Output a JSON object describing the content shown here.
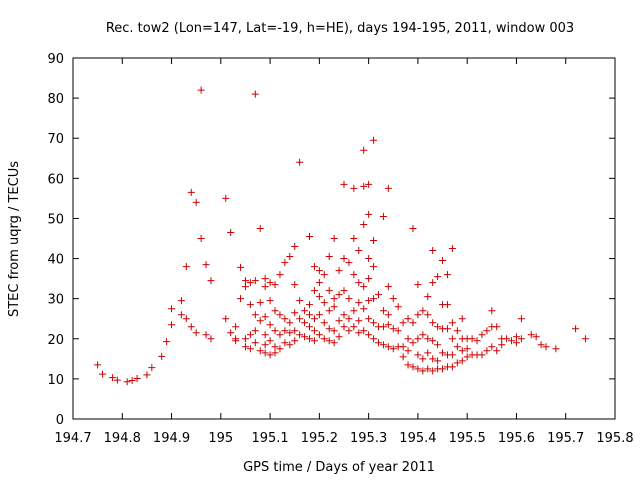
{
  "chart_data": {
    "type": "scatter",
    "title": "Rec. tow2 (Lon=147, Lat=-19, h=HE), days 194-195, 2011, window 003",
    "xlabel": "GPS time / Days of year 2011",
    "ylabel": "STEC from uqrg / TECUs",
    "xlim": [
      194.7,
      195.8
    ],
    "ylim": [
      0,
      90
    ],
    "xticks": [
      194.7,
      194.8,
      194.9,
      195.0,
      195.1,
      195.2,
      195.3,
      195.4,
      195.5,
      195.6,
      195.7,
      195.8
    ],
    "xtick_labels": [
      "194.7",
      "194.8",
      "194.9",
      "195",
      "195.1",
      "195.2",
      "195.3",
      "195.4",
      "195.5",
      "195.6",
      "195.7",
      "195.8"
    ],
    "yticks": [
      0,
      10,
      20,
      30,
      40,
      50,
      60,
      70,
      80,
      90
    ],
    "ytick_labels": [
      "0",
      "10",
      "20",
      "30",
      "40",
      "50",
      "60",
      "70",
      "80",
      "90"
    ],
    "grid": false,
    "marker": "+",
    "color": "#cc0000",
    "points": [
      [
        194.75,
        13.5
      ],
      [
        194.76,
        11.2
      ],
      [
        194.78,
        10.3
      ],
      [
        194.79,
        9.7
      ],
      [
        194.81,
        9.3
      ],
      [
        194.82,
        9.6
      ],
      [
        194.83,
        10.1
      ],
      [
        194.85,
        11.0
      ],
      [
        194.86,
        12.8
      ],
      [
        194.88,
        15.6
      ],
      [
        194.89,
        19.3
      ],
      [
        194.9,
        23.5
      ],
      [
        194.9,
        27.5
      ],
      [
        194.92,
        26.0
      ],
      [
        194.92,
        29.5
      ],
      [
        194.93,
        25.0
      ],
      [
        194.93,
        38.0
      ],
      [
        194.94,
        23.0
      ],
      [
        194.94,
        56.5
      ],
      [
        194.95,
        54.0
      ],
      [
        194.95,
        21.5
      ],
      [
        194.96,
        45.0
      ],
      [
        194.96,
        82.0
      ],
      [
        194.97,
        21.0
      ],
      [
        194.97,
        38.5
      ],
      [
        194.98,
        20.0
      ],
      [
        194.98,
        34.5
      ],
      [
        195.01,
        55.0
      ],
      [
        195.01,
        25.0
      ],
      [
        195.02,
        21.5
      ],
      [
        195.02,
        46.5
      ],
      [
        195.03,
        23.0
      ],
      [
        195.03,
        20.0
      ],
      [
        195.03,
        19.5
      ],
      [
        195.04,
        37.8
      ],
      [
        195.04,
        30.0
      ],
      [
        195.05,
        33.0
      ],
      [
        195.05,
        34.5
      ],
      [
        195.05,
        20.0
      ],
      [
        195.05,
        18.0
      ],
      [
        195.06,
        34.0
      ],
      [
        195.06,
        28.5
      ],
      [
        195.06,
        21.0
      ],
      [
        195.06,
        17.5
      ],
      [
        195.07,
        81.0
      ],
      [
        195.07,
        34.5
      ],
      [
        195.07,
        26.0
      ],
      [
        195.07,
        22.0
      ],
      [
        195.07,
        19.0
      ],
      [
        195.08,
        47.5
      ],
      [
        195.08,
        24.5
      ],
      [
        195.08,
        17.0
      ],
      [
        195.08,
        29.0
      ],
      [
        195.09,
        35.0
      ],
      [
        195.09,
        33.0
      ],
      [
        195.09,
        25.5
      ],
      [
        195.09,
        21.0
      ],
      [
        195.09,
        18.5
      ],
      [
        195.09,
        16.5
      ],
      [
        195.1,
        34.0
      ],
      [
        195.1,
        29.5
      ],
      [
        195.1,
        23.5
      ],
      [
        195.1,
        19.5
      ],
      [
        195.1,
        16.0
      ],
      [
        195.11,
        33.5
      ],
      [
        195.11,
        27.0
      ],
      [
        195.11,
        22.0
      ],
      [
        195.11,
        18.0
      ],
      [
        195.11,
        16.5
      ],
      [
        195.12,
        36.0
      ],
      [
        195.12,
        26.0
      ],
      [
        195.12,
        21.0
      ],
      [
        195.12,
        17.5
      ],
      [
        195.13,
        39.0
      ],
      [
        195.13,
        25.0
      ],
      [
        195.13,
        22.0
      ],
      [
        195.13,
        19.0
      ],
      [
        195.14,
        40.5
      ],
      [
        195.14,
        24.0
      ],
      [
        195.14,
        21.5
      ],
      [
        195.14,
        18.5
      ],
      [
        195.15,
        43.0
      ],
      [
        195.15,
        33.5
      ],
      [
        195.15,
        26.5
      ],
      [
        195.15,
        22.0
      ],
      [
        195.15,
        19.5
      ],
      [
        195.16,
        64.0
      ],
      [
        195.16,
        29.5
      ],
      [
        195.16,
        25.0
      ],
      [
        195.16,
        21.0
      ],
      [
        195.17,
        27.0
      ],
      [
        195.17,
        24.0
      ],
      [
        195.17,
        20.5
      ],
      [
        195.18,
        45.5
      ],
      [
        195.18,
        28.5
      ],
      [
        195.18,
        26.0
      ],
      [
        195.18,
        23.0
      ],
      [
        195.18,
        20.0
      ],
      [
        195.19,
        38.0
      ],
      [
        195.19,
        32.0
      ],
      [
        195.19,
        25.0
      ],
      [
        195.19,
        22.0
      ],
      [
        195.19,
        19.5
      ],
      [
        195.2,
        37.0
      ],
      [
        195.2,
        34.0
      ],
      [
        195.2,
        30.5
      ],
      [
        195.2,
        26.0
      ],
      [
        195.2,
        21.0
      ],
      [
        195.21,
        36.0
      ],
      [
        195.21,
        29.0
      ],
      [
        195.21,
        24.0
      ],
      [
        195.21,
        20.0
      ],
      [
        195.22,
        40.5
      ],
      [
        195.22,
        32.0
      ],
      [
        195.22,
        27.0
      ],
      [
        195.22,
        22.5
      ],
      [
        195.22,
        19.5
      ],
      [
        195.23,
        45.0
      ],
      [
        195.23,
        30.0
      ],
      [
        195.23,
        28.0
      ],
      [
        195.23,
        22.0
      ],
      [
        195.23,
        19.0
      ],
      [
        195.24,
        37.0
      ],
      [
        195.24,
        31.0
      ],
      [
        195.24,
        24.5
      ],
      [
        195.24,
        20.5
      ],
      [
        195.25,
        58.5
      ],
      [
        195.25,
        40.0
      ],
      [
        195.25,
        32.0
      ],
      [
        195.25,
        26.0
      ],
      [
        195.25,
        23.0
      ],
      [
        195.26,
        39.0
      ],
      [
        195.26,
        30.0
      ],
      [
        195.26,
        25.0
      ],
      [
        195.26,
        22.0
      ],
      [
        195.27,
        57.5
      ],
      [
        195.27,
        45.0
      ],
      [
        195.27,
        36.0
      ],
      [
        195.27,
        27.0
      ],
      [
        195.27,
        23.0
      ],
      [
        195.28,
        42.0
      ],
      [
        195.28,
        34.0
      ],
      [
        195.28,
        29.0
      ],
      [
        195.28,
        24.5
      ],
      [
        195.28,
        21.5
      ],
      [
        195.29,
        67.0
      ],
      [
        195.29,
        58.0
      ],
      [
        195.29,
        48.5
      ],
      [
        195.29,
        33.0
      ],
      [
        195.29,
        27.5
      ],
      [
        195.29,
        22.0
      ],
      [
        195.3,
        58.5
      ],
      [
        195.3,
        51.0
      ],
      [
        195.3,
        40.0
      ],
      [
        195.3,
        35.0
      ],
      [
        195.3,
        29.5
      ],
      [
        195.3,
        25.0
      ],
      [
        195.3,
        21.0
      ],
      [
        195.31,
        69.5
      ],
      [
        195.31,
        44.5
      ],
      [
        195.31,
        38.0
      ],
      [
        195.31,
        30.0
      ],
      [
        195.31,
        24.0
      ],
      [
        195.31,
        20.0
      ],
      [
        195.32,
        31.0
      ],
      [
        195.32,
        23.0
      ],
      [
        195.32,
        19.0
      ],
      [
        195.33,
        50.5
      ],
      [
        195.33,
        27.0
      ],
      [
        195.33,
        23.0
      ],
      [
        195.33,
        18.5
      ],
      [
        195.34,
        57.5
      ],
      [
        195.34,
        33.0
      ],
      [
        195.34,
        26.0
      ],
      [
        195.34,
        23.5
      ],
      [
        195.34,
        18.0
      ],
      [
        195.35,
        30.0
      ],
      [
        195.35,
        22.5
      ],
      [
        195.35,
        17.5
      ],
      [
        195.36,
        28.0
      ],
      [
        195.36,
        22.0
      ],
      [
        195.36,
        18.0
      ],
      [
        195.37,
        24.0
      ],
      [
        195.37,
        18.0
      ],
      [
        195.37,
        15.5
      ],
      [
        195.38,
        25.0
      ],
      [
        195.38,
        20.0
      ],
      [
        195.38,
        17.0
      ],
      [
        195.38,
        13.5
      ],
      [
        195.39,
        47.5
      ],
      [
        195.39,
        24.0
      ],
      [
        195.39,
        19.0
      ],
      [
        195.39,
        13.0
      ],
      [
        195.4,
        33.5
      ],
      [
        195.4,
        26.0
      ],
      [
        195.4,
        20.0
      ],
      [
        195.4,
        16.0
      ],
      [
        195.4,
        12.5
      ],
      [
        195.41,
        27.0
      ],
      [
        195.41,
        21.0
      ],
      [
        195.41,
        15.0
      ],
      [
        195.41,
        12.0
      ],
      [
        195.42,
        30.5
      ],
      [
        195.42,
        26.0
      ],
      [
        195.42,
        20.0
      ],
      [
        195.42,
        16.5
      ],
      [
        195.42,
        12.5
      ],
      [
        195.43,
        42.0
      ],
      [
        195.43,
        34.0
      ],
      [
        195.43,
        24.0
      ],
      [
        195.43,
        19.5
      ],
      [
        195.43,
        15.0
      ],
      [
        195.43,
        12.0
      ],
      [
        195.44,
        35.5
      ],
      [
        195.44,
        23.0
      ],
      [
        195.44,
        18.5
      ],
      [
        195.44,
        14.5
      ],
      [
        195.44,
        12.5
      ],
      [
        195.45,
        39.5
      ],
      [
        195.45,
        28.5
      ],
      [
        195.45,
        22.5
      ],
      [
        195.45,
        16.5
      ],
      [
        195.45,
        12.5
      ],
      [
        195.46,
        36.0
      ],
      [
        195.46,
        28.5
      ],
      [
        195.46,
        22.5
      ],
      [
        195.46,
        16.0
      ],
      [
        195.46,
        13.0
      ],
      [
        195.47,
        42.5
      ],
      [
        195.47,
        24.0
      ],
      [
        195.47,
        20.0
      ],
      [
        195.47,
        16.0
      ],
      [
        195.47,
        13.0
      ],
      [
        195.48,
        22.0
      ],
      [
        195.48,
        18.0
      ],
      [
        195.48,
        14.0
      ],
      [
        195.49,
        25.0
      ],
      [
        195.49,
        20.0
      ],
      [
        195.49,
        17.0
      ],
      [
        195.49,
        14.5
      ],
      [
        195.5,
        20.0
      ],
      [
        195.5,
        17.5
      ],
      [
        195.5,
        15.5
      ],
      [
        195.51,
        20.0
      ],
      [
        195.51,
        16.0
      ],
      [
        195.52,
        19.5
      ],
      [
        195.52,
        16.0
      ],
      [
        195.53,
        21.0
      ],
      [
        195.53,
        16.0
      ],
      [
        195.54,
        22.0
      ],
      [
        195.54,
        17.0
      ],
      [
        195.55,
        27.0
      ],
      [
        195.55,
        23.0
      ],
      [
        195.55,
        18.0
      ],
      [
        195.56,
        23.0
      ],
      [
        195.56,
        17.0
      ],
      [
        195.57,
        20.0
      ],
      [
        195.57,
        18.5
      ],
      [
        195.58,
        20.0
      ],
      [
        195.59,
        19.5
      ],
      [
        195.6,
        20.5
      ],
      [
        195.6,
        19.0
      ],
      [
        195.61,
        25.0
      ],
      [
        195.61,
        20.0
      ],
      [
        195.63,
        21.0
      ],
      [
        195.64,
        20.5
      ],
      [
        195.65,
        18.5
      ],
      [
        195.66,
        18.0
      ],
      [
        195.68,
        17.5
      ],
      [
        195.72,
        22.5
      ],
      [
        195.74,
        20.0
      ]
    ]
  }
}
